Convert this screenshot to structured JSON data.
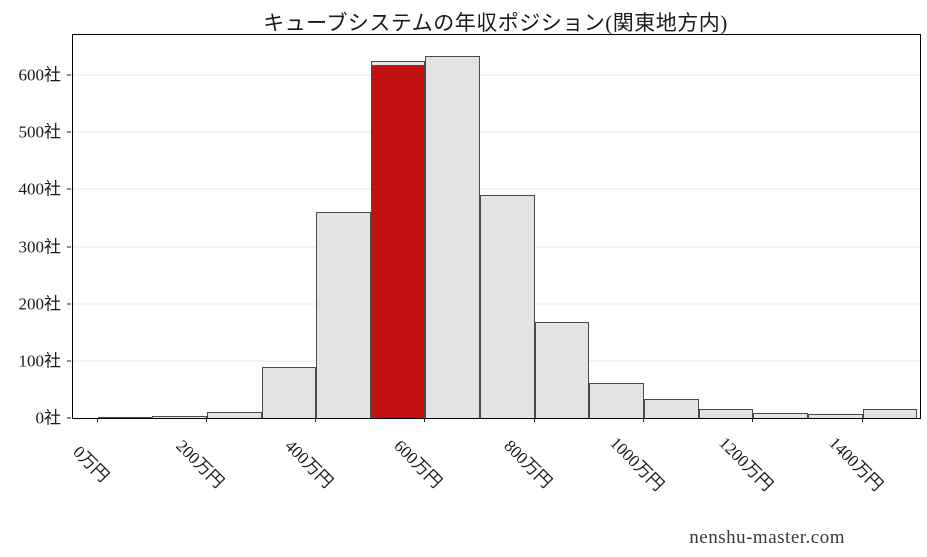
{
  "watermark": "nenshu-master.com",
  "chart_data": {
    "type": "bar",
    "subtype": "histogram",
    "title": "キューブシステムの年収ポジション(関東地方内)",
    "xlabel": "",
    "ylabel": "",
    "x_unit": "万円",
    "y_unit": "社",
    "grid": true,
    "legend_position": "none",
    "gridline_color": "#e7e7f0",
    "bar_color": "#e3e3e3",
    "bar_border_color": "#4a4a4a",
    "bin_width": 100,
    "bins": [
      0,
      100,
      200,
      300,
      400,
      500,
      600,
      700,
      800,
      900,
      1000,
      1100,
      1200,
      1300,
      1400
    ],
    "values": [
      1,
      3,
      10,
      90,
      360,
      625,
      633,
      390,
      168,
      62,
      33,
      16,
      9,
      7,
      16
    ],
    "highlight": {
      "index": 5,
      "value": 617,
      "color": "#c01010"
    },
    "xlim": [
      -45,
      1505
    ],
    "ylim": [
      0,
      670
    ],
    "xticks": [
      {
        "value": 0,
        "label": "0万円"
      },
      {
        "value": 200,
        "label": "200万円"
      },
      {
        "value": 400,
        "label": "400万円"
      },
      {
        "value": 600,
        "label": "600万円"
      },
      {
        "value": 800,
        "label": "800万円"
      },
      {
        "value": 1000,
        "label": "1000万円"
      },
      {
        "value": 1200,
        "label": "1200万円"
      },
      {
        "value": 1400,
        "label": "1400万円"
      }
    ],
    "yticks": [
      {
        "value": 0,
        "label": "0社"
      },
      {
        "value": 100,
        "label": "100社"
      },
      {
        "value": 200,
        "label": "200社"
      },
      {
        "value": 300,
        "label": "300社"
      },
      {
        "value": 400,
        "label": "400社"
      },
      {
        "value": 500,
        "label": "500社"
      },
      {
        "value": 600,
        "label": "600社"
      }
    ]
  }
}
